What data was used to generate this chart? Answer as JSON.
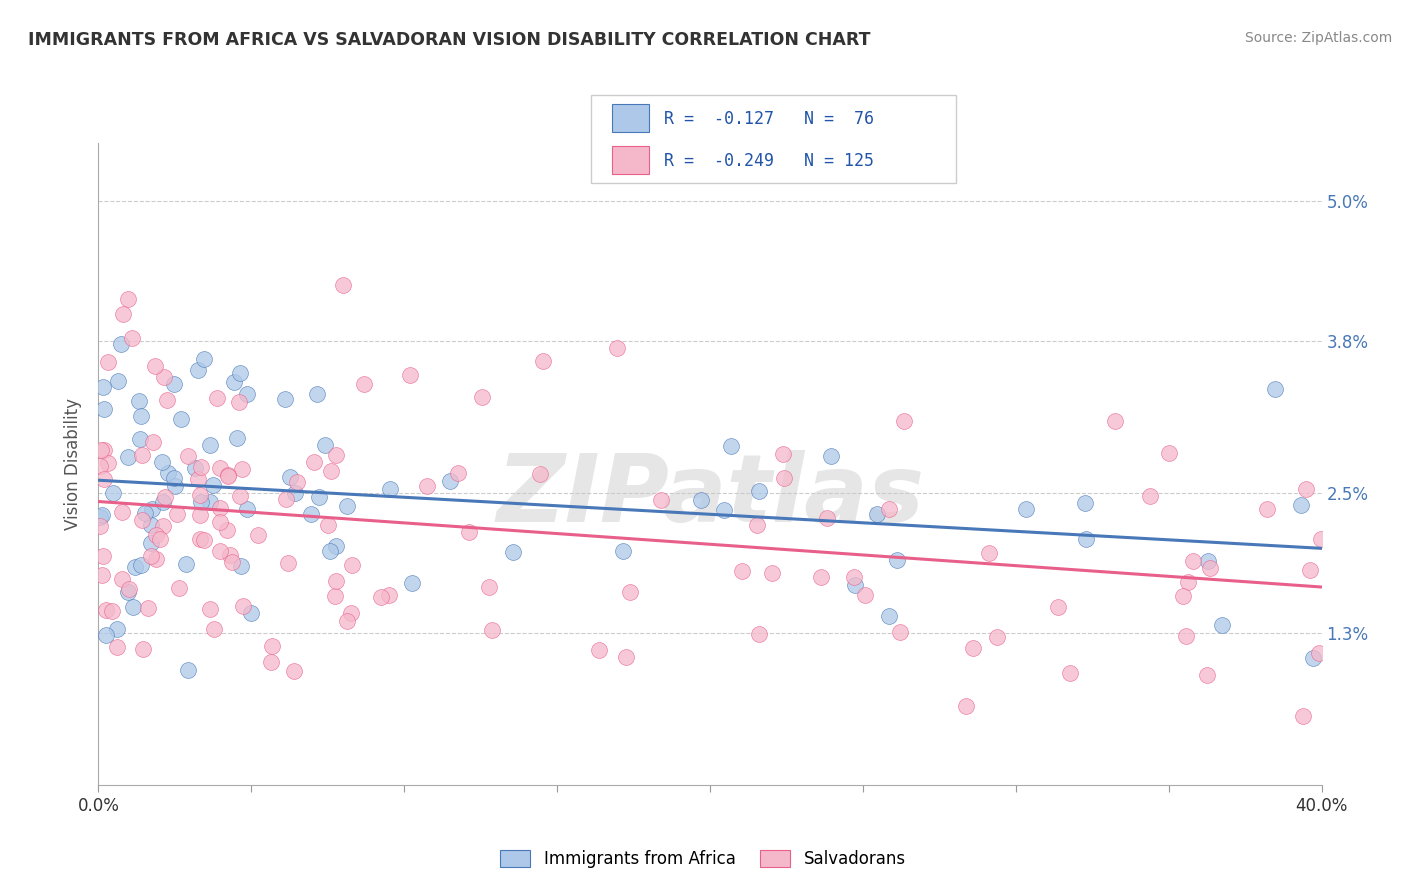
{
  "title": "IMMIGRANTS FROM AFRICA VS SALVADORAN VISION DISABILITY CORRELATION CHART",
  "source": "Source: ZipAtlas.com",
  "ylabel": "Vision Disability",
  "xlim": [
    0.0,
    40.0
  ],
  "ylim": [
    0.0,
    5.5
  ],
  "ytick_vals": [
    1.3,
    2.5,
    3.8,
    5.0
  ],
  "ytick_labels": [
    "1.3%",
    "2.5%",
    "3.8%",
    "5.0%"
  ],
  "r_africa": -0.127,
  "n_africa": 76,
  "r_salvadoran": -0.249,
  "n_salvadoran": 125,
  "color_africa": "#adc8e8",
  "color_salvadoran": "#f5b8cb",
  "line_color_africa": "#4878b8",
  "line_color_salvadoran": "#e8608a",
  "ytick_color": "#4878b8",
  "watermark": "ZIPatlas",
  "legend_label_africa": "Immigrants from Africa",
  "legend_label_salvadoran": "Salvadorans",
  "seed": 1234
}
